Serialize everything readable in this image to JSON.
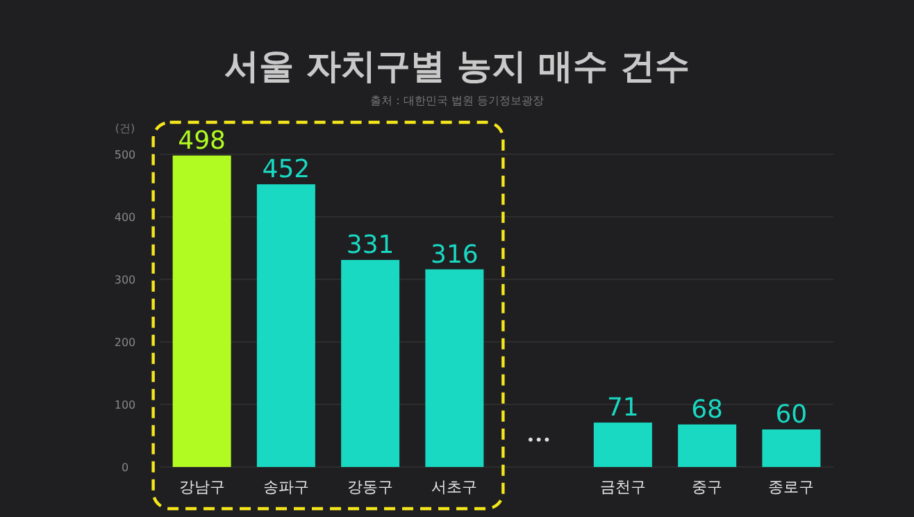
{
  "chart_data": {
    "type": "bar",
    "title": "서울 자치구별 농지 매수 건수",
    "subtitle": "출처 : 대한민국 법원 등기정보광장",
    "ylabel": "(건)",
    "categories": [
      "강남구",
      "송파구",
      "강동구",
      "서초구",
      null,
      "금천구",
      "중구",
      "종로구"
    ],
    "values": [
      498,
      452,
      331,
      316,
      null,
      71,
      68,
      60
    ],
    "colors": [
      "#b2fb22",
      "#19d9c3",
      "#19d9c3",
      "#19d9c3",
      null,
      "#19d9c3",
      "#19d9c3",
      "#19d9c3"
    ],
    "ylim": [
      0,
      500
    ],
    "yticks": [
      0,
      100,
      200,
      300,
      400,
      500
    ],
    "grid": "y",
    "data_labels": true,
    "annotations": [
      "•••"
    ]
  }
}
